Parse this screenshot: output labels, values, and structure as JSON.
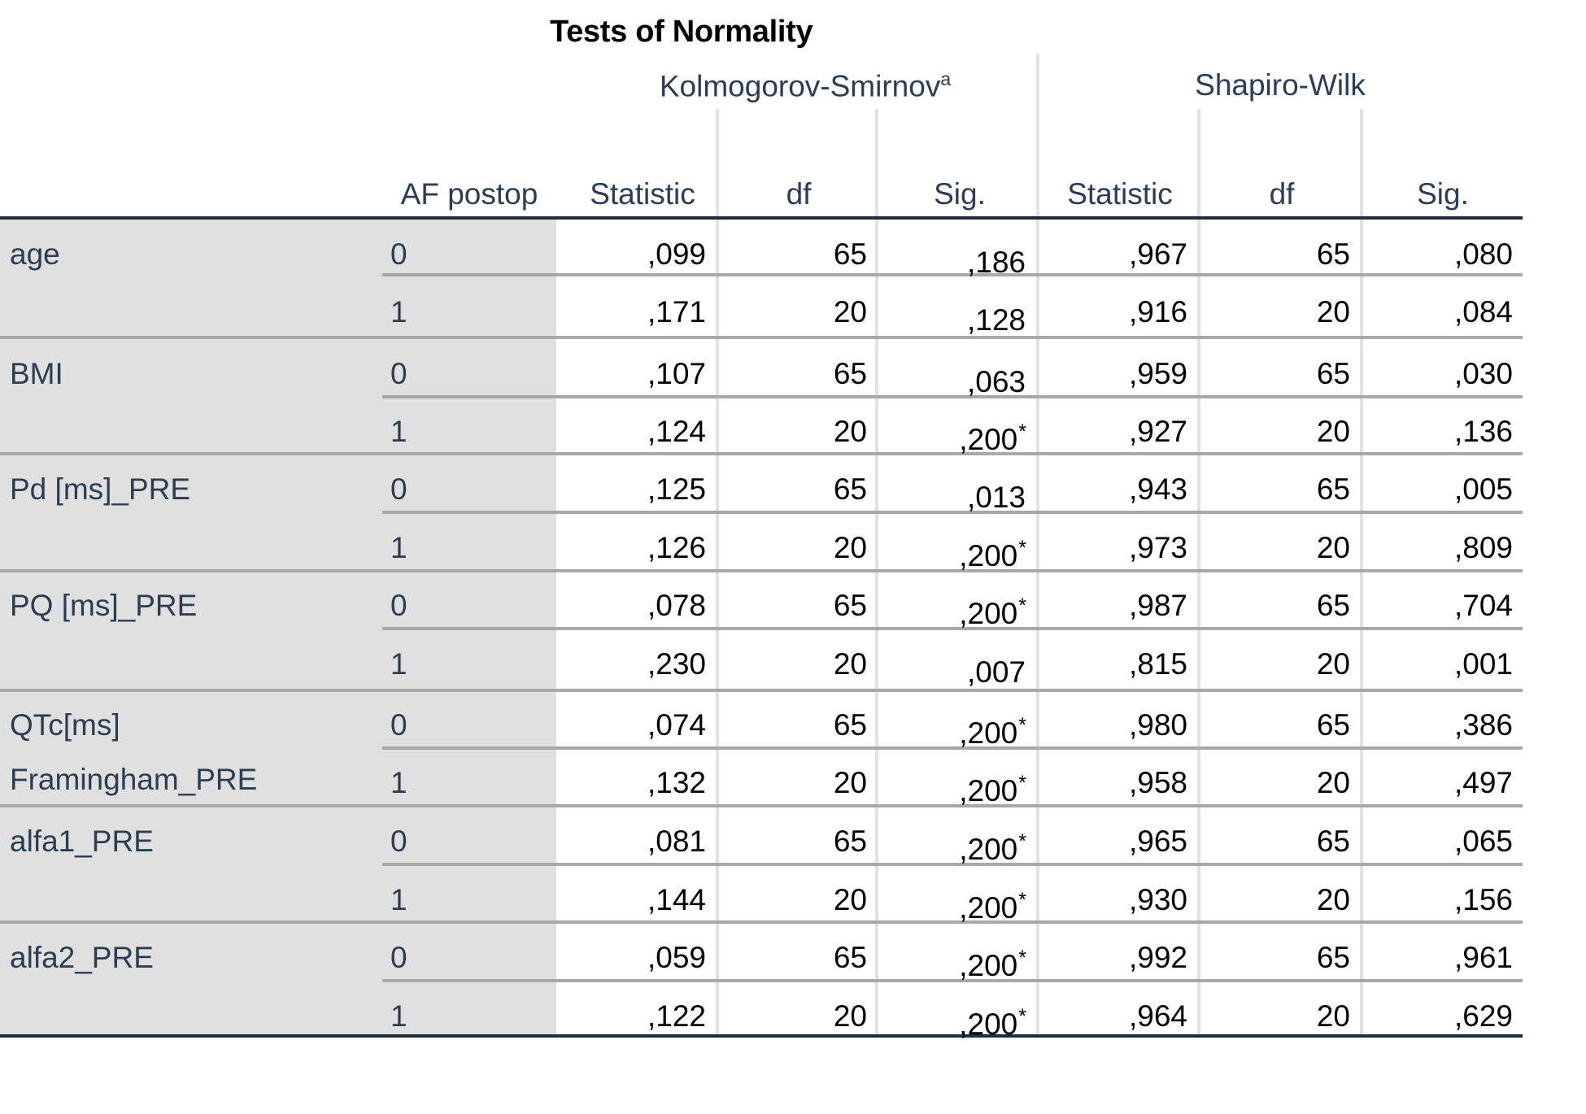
{
  "title": "Tests of Normality",
  "groups": {
    "ks": "Kolmogorov-Smirnov",
    "ks_sup": "a",
    "sw": "Shapiro-Wilk"
  },
  "columns": {
    "af": "AF postop",
    "ks_stat": "Statistic",
    "ks_df": "df",
    "ks_sig": "Sig.",
    "sw_stat": "Statistic",
    "sw_df": "df",
    "sw_sig": "Sig."
  },
  "variables": [
    {
      "label": "age"
    },
    {
      "label": "BMI"
    },
    {
      "label": "Pd [ms]_PRE"
    },
    {
      "label": "PQ [ms]_PRE"
    },
    {
      "label": "QTc[ms]",
      "label2": "Framingham_PRE"
    },
    {
      "label": "alfa1_PRE"
    },
    {
      "label": "alfa2_PRE"
    }
  ],
  "rows": [
    {
      "af": "0",
      "ks_stat": ",099",
      "ks_df": "65",
      "ks_sig": ",186",
      "ks_sig_star": "",
      "sw_stat": ",967",
      "sw_df": "65",
      "sw_sig": ",080"
    },
    {
      "af": "1",
      "ks_stat": ",171",
      "ks_df": "20",
      "ks_sig": ",128",
      "ks_sig_star": "",
      "sw_stat": ",916",
      "sw_df": "20",
      "sw_sig": ",084"
    },
    {
      "af": "0",
      "ks_stat": ",107",
      "ks_df": "65",
      "ks_sig": ",063",
      "ks_sig_star": "",
      "sw_stat": ",959",
      "sw_df": "65",
      "sw_sig": ",030"
    },
    {
      "af": "1",
      "ks_stat": ",124",
      "ks_df": "20",
      "ks_sig": ",200",
      "ks_sig_star": "*",
      "sw_stat": ",927",
      "sw_df": "20",
      "sw_sig": ",136"
    },
    {
      "af": "0",
      "ks_stat": ",125",
      "ks_df": "65",
      "ks_sig": ",013",
      "ks_sig_star": "",
      "sw_stat": ",943",
      "sw_df": "65",
      "sw_sig": ",005"
    },
    {
      "af": "1",
      "ks_stat": ",126",
      "ks_df": "20",
      "ks_sig": ",200",
      "ks_sig_star": "*",
      "sw_stat": ",973",
      "sw_df": "20",
      "sw_sig": ",809"
    },
    {
      "af": "0",
      "ks_stat": ",078",
      "ks_df": "65",
      "ks_sig": ",200",
      "ks_sig_star": "*",
      "sw_stat": ",987",
      "sw_df": "65",
      "sw_sig": ",704"
    },
    {
      "af": "1",
      "ks_stat": ",230",
      "ks_df": "20",
      "ks_sig": ",007",
      "ks_sig_star": "",
      "sw_stat": ",815",
      "sw_df": "20",
      "sw_sig": ",001"
    },
    {
      "af": "0",
      "ks_stat": ",074",
      "ks_df": "65",
      "ks_sig": ",200",
      "ks_sig_star": "*",
      "sw_stat": ",980",
      "sw_df": "65",
      "sw_sig": ",386"
    },
    {
      "af": "1",
      "ks_stat": ",132",
      "ks_df": "20",
      "ks_sig": ",200",
      "ks_sig_star": "*",
      "sw_stat": ",958",
      "sw_df": "20",
      "sw_sig": ",497"
    },
    {
      "af": "0",
      "ks_stat": ",081",
      "ks_df": "65",
      "ks_sig": ",200",
      "ks_sig_star": "*",
      "sw_stat": ",965",
      "sw_df": "65",
      "sw_sig": ",065"
    },
    {
      "af": "1",
      "ks_stat": ",144",
      "ks_df": "20",
      "ks_sig": ",200",
      "ks_sig_star": "*",
      "sw_stat": ",930",
      "sw_df": "20",
      "sw_sig": ",156"
    },
    {
      "af": "0",
      "ks_stat": ",059",
      "ks_df": "65",
      "ks_sig": ",200",
      "ks_sig_star": "*",
      "sw_stat": ",992",
      "sw_df": "65",
      "sw_sig": ",961"
    },
    {
      "af": "1",
      "ks_stat": ",122",
      "ks_df": "20",
      "ks_sig": ",200",
      "ks_sig_star": "*",
      "sw_stat": ",964",
      "sw_df": "20",
      "sw_sig": ",629"
    }
  ]
}
